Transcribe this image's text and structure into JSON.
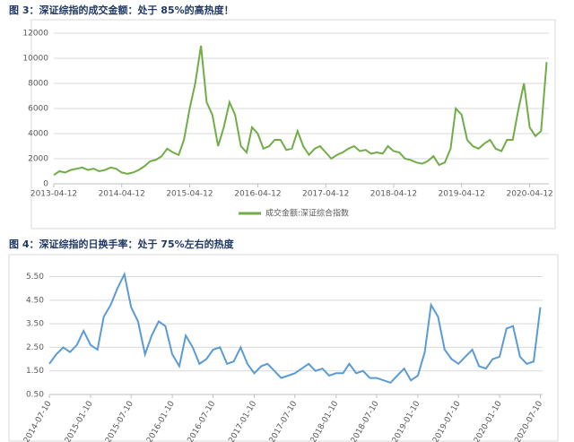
{
  "chart_data": [
    {
      "type": "line",
      "title": "图 3：深证综指的成交金额：处于 85%的高热度！",
      "x": [
        "2013-04-12",
        "2013-05-12",
        "2013-06-12",
        "2013-07-12",
        "2013-08-12",
        "2013-09-12",
        "2013-10-12",
        "2013-11-12",
        "2013-12-12",
        "2014-01-12",
        "2014-02-12",
        "2014-03-12",
        "2014-04-12",
        "2014-05-12",
        "2014-06-12",
        "2014-07-12",
        "2014-08-12",
        "2014-09-12",
        "2014-10-12",
        "2014-11-12",
        "2014-12-12",
        "2015-01-12",
        "2015-02-12",
        "2015-03-12",
        "2015-04-12",
        "2015-05-12",
        "2015-06-12",
        "2015-07-12",
        "2015-08-12",
        "2015-09-12",
        "2015-10-12",
        "2015-11-12",
        "2015-12-12",
        "2016-01-12",
        "2016-02-12",
        "2016-03-12",
        "2016-04-12",
        "2016-05-12",
        "2016-06-12",
        "2016-07-12",
        "2016-08-12",
        "2016-09-12",
        "2016-10-12",
        "2016-11-12",
        "2016-12-12",
        "2017-01-12",
        "2017-02-12",
        "2017-03-12",
        "2017-04-12",
        "2017-05-12",
        "2017-06-12",
        "2017-07-12",
        "2017-08-12",
        "2017-09-12",
        "2017-10-12",
        "2017-11-12",
        "2017-12-12",
        "2018-01-12",
        "2018-02-12",
        "2018-03-12",
        "2018-04-12",
        "2018-05-12",
        "2018-06-12",
        "2018-07-12",
        "2018-08-12",
        "2018-09-12",
        "2018-10-12",
        "2018-11-12",
        "2018-12-12",
        "2019-01-12",
        "2019-02-12",
        "2019-03-12",
        "2019-04-12",
        "2019-05-12",
        "2019-06-12",
        "2019-07-12",
        "2019-08-12",
        "2019-09-12",
        "2019-10-12",
        "2019-11-12",
        "2019-12-12",
        "2020-01-12",
        "2020-02-12",
        "2020-03-12",
        "2020-04-12",
        "2020-05-12",
        "2020-06-12",
        "2020-07-12"
      ],
      "series": [
        {
          "name": "成交金额:深证综合指数",
          "color": "#70ad47",
          "values": [
            700,
            1000,
            900,
            1100,
            1200,
            1300,
            1100,
            1200,
            1000,
            1100,
            1300,
            1200,
            900,
            800,
            900,
            1100,
            1400,
            1800,
            1900,
            2200,
            2800,
            2500,
            2300,
            3500,
            6000,
            8000,
            11000,
            6500,
            5500,
            3000,
            4500,
            6500,
            5500,
            3000,
            2500,
            4500,
            4000,
            2800,
            3000,
            3500,
            3500,
            2700,
            2800,
            4200,
            3000,
            2300,
            2800,
            3000,
            2500,
            2000,
            2300,
            2500,
            2800,
            3000,
            2600,
            2700,
            2400,
            2500,
            2400,
            3000,
            2600,
            2500,
            2000,
            1900,
            1700,
            1600,
            1800,
            2200,
            1500,
            1700,
            2800,
            6000,
            5500,
            3500,
            3000,
            2800,
            3200,
            3500,
            2800,
            2600,
            3500,
            3500,
            6000,
            8000,
            4500,
            3800,
            4200,
            9700
          ]
        }
      ],
      "xlim": [
        "2013-04-12",
        "2020-07-24"
      ],
      "xticks": [
        "2013-04-12",
        "2014-04-12",
        "2015-04-12",
        "2016-04-12",
        "2017-04-12",
        "2018-04-12",
        "2019-04-12",
        "2020-04-12"
      ],
      "ylim": [
        0,
        12000
      ],
      "yticks": [
        0,
        2000,
        4000,
        6000,
        8000,
        10000,
        12000
      ],
      "grid": true,
      "legend": "bottom"
    },
    {
      "type": "line",
      "title": "图 4：深证综指的日换手率：处于 75%左右的热度",
      "x": [
        "2014-07-10",
        "2014-08-10",
        "2014-09-10",
        "2014-10-10",
        "2014-11-10",
        "2014-12-10",
        "2015-01-10",
        "2015-02-10",
        "2015-03-10",
        "2015-04-10",
        "2015-05-10",
        "2015-06-10",
        "2015-07-10",
        "2015-08-10",
        "2015-09-10",
        "2015-10-10",
        "2015-11-10",
        "2015-12-10",
        "2016-01-10",
        "2016-02-10",
        "2016-03-10",
        "2016-04-10",
        "2016-05-10",
        "2016-06-10",
        "2016-07-10",
        "2016-08-10",
        "2016-09-10",
        "2016-10-10",
        "2016-11-10",
        "2016-12-10",
        "2017-01-10",
        "2017-02-10",
        "2017-03-10",
        "2017-04-10",
        "2017-05-10",
        "2017-06-10",
        "2017-07-10",
        "2017-08-10",
        "2017-09-10",
        "2017-10-10",
        "2017-11-10",
        "2017-12-10",
        "2018-01-10",
        "2018-02-10",
        "2018-03-10",
        "2018-04-10",
        "2018-05-10",
        "2018-06-10",
        "2018-07-10",
        "2018-08-10",
        "2018-09-10",
        "2018-10-10",
        "2018-11-10",
        "2018-12-10",
        "2019-01-10",
        "2019-02-10",
        "2019-03-10",
        "2019-04-10",
        "2019-05-10",
        "2019-06-10",
        "2019-07-10",
        "2019-08-10",
        "2019-09-10",
        "2019-10-10",
        "2019-11-10",
        "2019-12-10",
        "2020-01-10",
        "2020-02-10",
        "2020-03-10",
        "2020-04-10",
        "2020-05-10",
        "2020-06-10",
        "2020-07-10"
      ],
      "values": [
        1.8,
        2.2,
        2.5,
        2.3,
        2.6,
        3.2,
        2.6,
        2.4,
        3.8,
        4.3,
        5.0,
        5.6,
        4.2,
        3.6,
        2.2,
        3.0,
        3.6,
        3.4,
        2.2,
        1.7,
        3.0,
        2.5,
        1.8,
        2.0,
        2.4,
        2.5,
        1.8,
        1.9,
        2.5,
        1.8,
        1.4,
        1.7,
        1.8,
        1.5,
        1.2,
        1.3,
        1.4,
        1.6,
        1.8,
        1.5,
        1.6,
        1.3,
        1.4,
        1.4,
        1.8,
        1.4,
        1.5,
        1.2,
        1.2,
        1.1,
        1.0,
        1.3,
        1.6,
        1.1,
        1.3,
        2.3,
        4.3,
        3.8,
        2.4,
        2.0,
        1.8,
        2.1,
        2.4,
        1.7,
        1.6,
        2.0,
        2.1,
        3.3,
        3.4,
        2.1,
        1.8,
        1.9,
        4.2
      ],
      "color": "#5b9bd5",
      "xlim": [
        "2014-07-10",
        "2020-07-20"
      ],
      "xticks": [
        "2014-07-10",
        "2015-01-10",
        "2015-07-10",
        "2016-01-10",
        "2016-07-10",
        "2017-01-10",
        "2017-07-10",
        "2018-01-10",
        "2018-07-10",
        "2019-01-10",
        "2019-07-10",
        "2020-01-10",
        "2020-07-10"
      ],
      "ylim": [
        0.5,
        5.9
      ],
      "yticks": [
        {
          "value": 0.5,
          "label": "0.50"
        },
        {
          "value": 1.5,
          "label": "1.50"
        },
        {
          "value": 2.5,
          "label": "2.50"
        },
        {
          "value": 3.5,
          "label": "3.50"
        },
        {
          "value": 4.5,
          "label": "4.50"
        },
        {
          "value": 5.5,
          "label": "5.50"
        }
      ],
      "grid": true
    }
  ]
}
